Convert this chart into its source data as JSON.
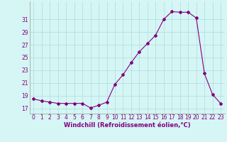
{
  "x": [
    0,
    1,
    2,
    3,
    4,
    5,
    6,
    7,
    8,
    9,
    10,
    11,
    12,
    13,
    14,
    15,
    16,
    17,
    18,
    19,
    20,
    21,
    22,
    23
  ],
  "y": [
    18.5,
    18.2,
    18.0,
    17.8,
    17.8,
    17.8,
    17.8,
    17.1,
    17.5,
    18.0,
    20.8,
    22.3,
    24.2,
    25.9,
    27.2,
    28.5,
    31.0,
    32.2,
    32.1,
    32.1,
    31.2,
    22.5,
    19.2,
    17.8
  ],
  "line_color": "#800080",
  "marker": "D",
  "marker_size": 2,
  "bg_color": "#d6f5f5",
  "grid_color": "#aadddd",
  "xlabel": "Windchill (Refroidissement éolien,°C)",
  "xlabel_color": "#800080",
  "xlabel_fontsize": 6.0,
  "tick_color": "#800080",
  "tick_fontsize": 5.5,
  "yticks": [
    17,
    19,
    21,
    23,
    25,
    27,
    29,
    31
  ],
  "ylim": [
    16.2,
    33.8
  ],
  "xlim": [
    -0.5,
    23.5
  ]
}
